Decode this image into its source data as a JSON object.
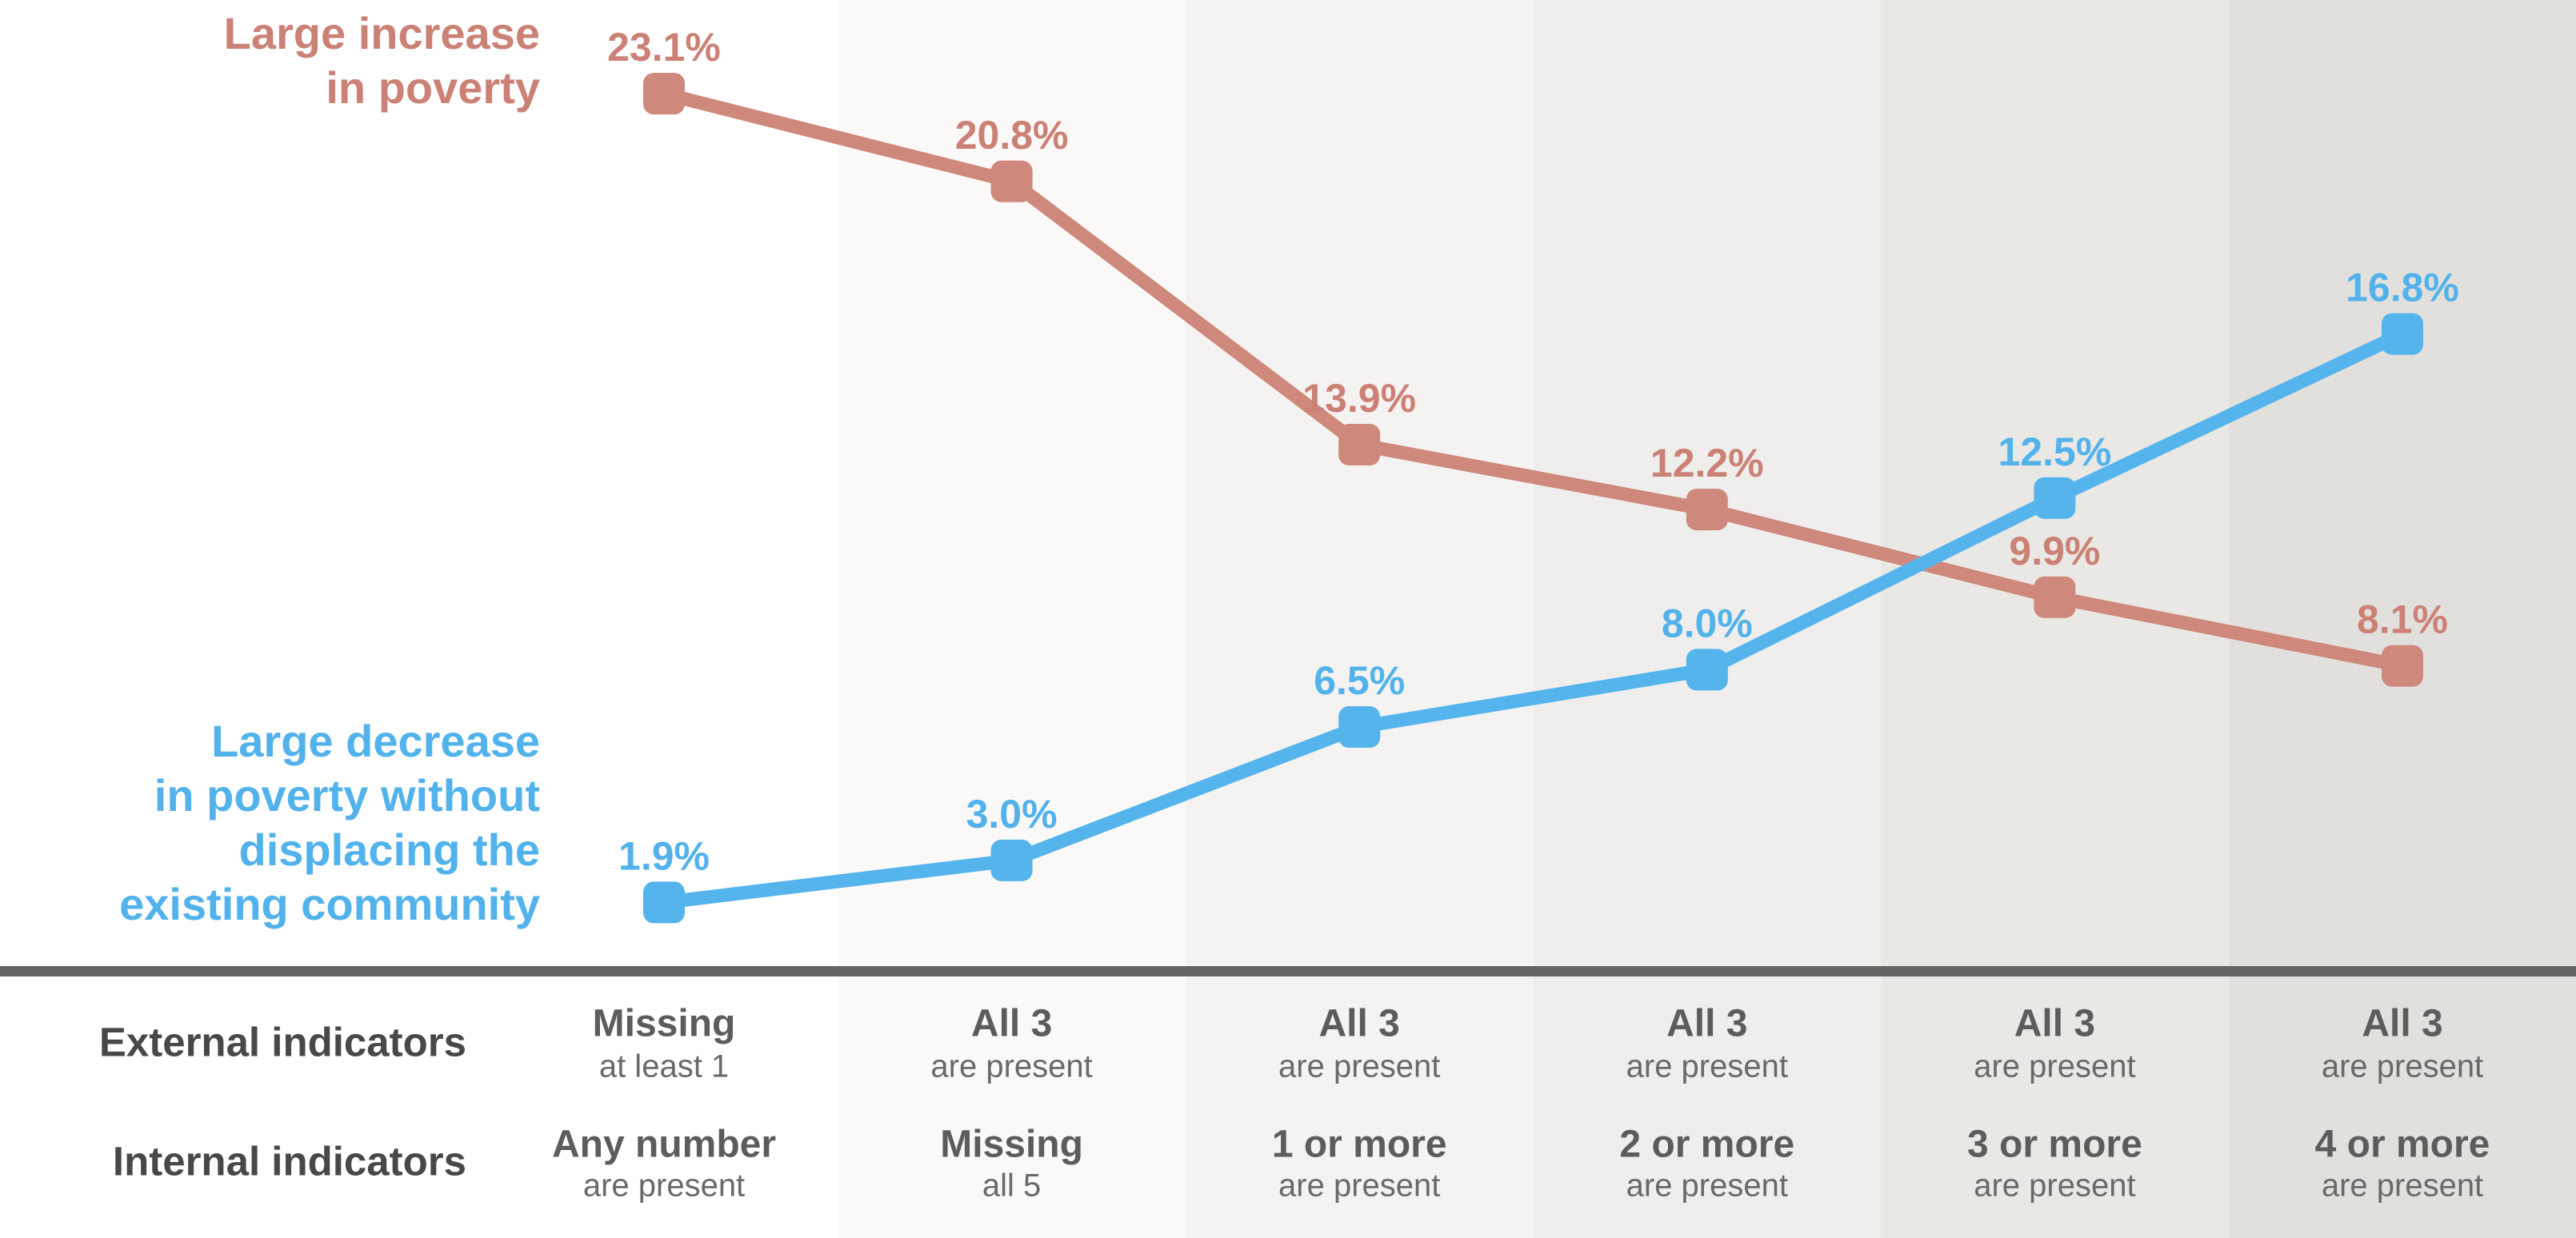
{
  "chart_data": {
    "type": "line",
    "title": "",
    "legend_position": "left-of-first-and-last-points",
    "grid": false,
    "ylim": [
      0,
      25.6
    ],
    "y_unit": "%",
    "axis_rows": [
      "External indicators",
      "Internal indicators"
    ],
    "categories": [
      {
        "external": [
          "Missing",
          "at least 1"
        ],
        "internal": [
          "Any number",
          "are present"
        ]
      },
      {
        "external": [
          "All 3",
          "are present"
        ],
        "internal": [
          "Missing",
          "all 5"
        ]
      },
      {
        "external": [
          "All 3",
          "are present"
        ],
        "internal": [
          "1 or more",
          "are present"
        ]
      },
      {
        "external": [
          "All 3",
          "are present"
        ],
        "internal": [
          "2 or more",
          "are present"
        ]
      },
      {
        "external": [
          "All 3",
          "are present"
        ],
        "internal": [
          "3 or more",
          "are present"
        ]
      },
      {
        "external": [
          "All 3",
          "are present"
        ],
        "internal": [
          "4 or more",
          "are present"
        ]
      }
    ],
    "series": [
      {
        "id": "increase",
        "name": "Large increase in poverty",
        "name_lines": [
          "Large increase",
          "in poverty"
        ],
        "color": "#ce887c",
        "label_color": "#cb8175",
        "values": [
          23.1,
          20.8,
          13.9,
          12.2,
          9.9,
          8.1
        ],
        "point_labels": [
          "23.1%",
          "20.8%",
          "13.9%",
          "12.2%",
          "9.9%",
          "8.1%"
        ]
      },
      {
        "id": "decrease",
        "name": "Large decrease in poverty without displacing the existing community",
        "name_lines": [
          "Large decrease",
          "in poverty without",
          "displacing the",
          "existing community"
        ],
        "color": "#55b4ec",
        "label_color": "#52b2ec",
        "values": [
          1.9,
          3.0,
          6.5,
          8.0,
          12.5,
          16.8
        ],
        "point_labels": [
          "1.9%",
          "3.0%",
          "6.5%",
          "8.0%",
          "12.5%",
          "16.8%"
        ]
      }
    ],
    "colors": {
      "background": "#ffffff",
      "bands": [
        "#ffffff",
        "#faf9f7",
        "#f4f3f1",
        "#efeeec",
        "#e9e8e5",
        "#e2e0dd"
      ],
      "axis_line": "#646567",
      "row_label_text": "#47484a",
      "cell_main_text": "#5b5c5e",
      "cell_sub_text": "#68696b"
    }
  }
}
